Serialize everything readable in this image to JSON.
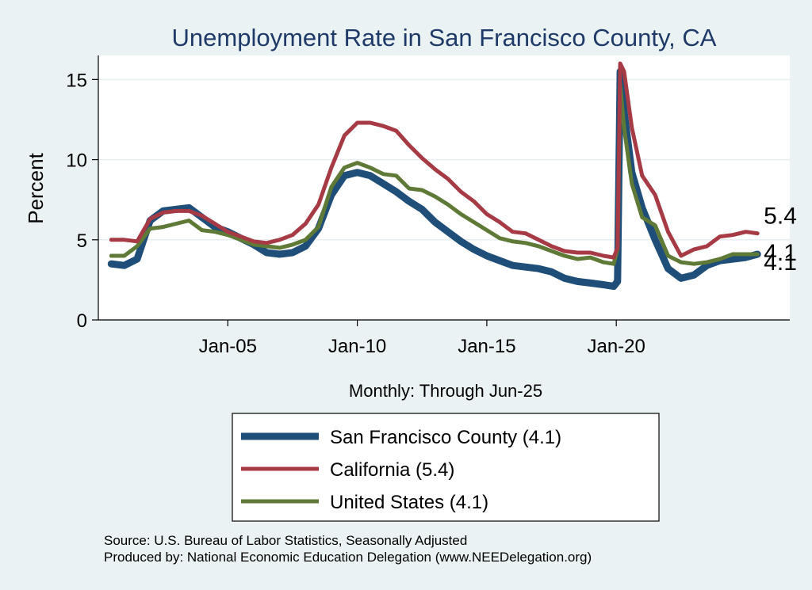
{
  "chart_data": {
    "type": "line",
    "title": "Unemployment Rate in San Francisco  County, CA",
    "xlabel": "Monthly: Through Jun-25",
    "ylabel": "Percent",
    "ylim": [
      0,
      16.5
    ],
    "xlim": [
      2000.0,
      2026.7
    ],
    "yticks": [
      0,
      5,
      10,
      15
    ],
    "xticks": [
      {
        "value": 2005.0,
        "label": "Jan-05"
      },
      {
        "value": 2010.0,
        "label": "Jan-10"
      },
      {
        "value": 2015.0,
        "label": "Jan-15"
      },
      {
        "value": 2020.0,
        "label": "Jan-20"
      }
    ],
    "series": [
      {
        "name": "San Francisco  County",
        "legend": "San Francisco  County (4.1)",
        "end_label": "4.1",
        "color": "#1f4e79",
        "points": [
          [
            2000.5,
            3.5
          ],
          [
            2001.0,
            3.4
          ],
          [
            2001.5,
            3.8
          ],
          [
            2002.0,
            6.2
          ],
          [
            2002.5,
            6.8
          ],
          [
            2003.0,
            6.9
          ],
          [
            2003.5,
            7.0
          ],
          [
            2004.0,
            6.4
          ],
          [
            2004.5,
            5.8
          ],
          [
            2005.0,
            5.5
          ],
          [
            2005.5,
            5.1
          ],
          [
            2006.0,
            4.7
          ],
          [
            2006.5,
            4.2
          ],
          [
            2007.0,
            4.1
          ],
          [
            2007.5,
            4.2
          ],
          [
            2008.0,
            4.6
          ],
          [
            2008.5,
            5.7
          ],
          [
            2009.0,
            7.8
          ],
          [
            2009.5,
            9.0
          ],
          [
            2010.0,
            9.2
          ],
          [
            2010.5,
            9.0
          ],
          [
            2011.0,
            8.5
          ],
          [
            2011.5,
            8.0
          ],
          [
            2012.0,
            7.4
          ],
          [
            2012.5,
            6.9
          ],
          [
            2013.0,
            6.1
          ],
          [
            2013.5,
            5.5
          ],
          [
            2014.0,
            4.9
          ],
          [
            2014.5,
            4.4
          ],
          [
            2015.0,
            4.0
          ],
          [
            2015.5,
            3.7
          ],
          [
            2016.0,
            3.4
          ],
          [
            2016.5,
            3.3
          ],
          [
            2017.0,
            3.2
          ],
          [
            2017.5,
            3.0
          ],
          [
            2018.0,
            2.6
          ],
          [
            2018.5,
            2.4
          ],
          [
            2019.0,
            2.3
          ],
          [
            2019.5,
            2.2
          ],
          [
            2019.9,
            2.1
          ],
          [
            2020.05,
            2.4
          ],
          [
            2020.15,
            15.5
          ],
          [
            2020.3,
            13.0
          ],
          [
            2020.6,
            9.2
          ],
          [
            2021.0,
            7.0
          ],
          [
            2021.5,
            5.0
          ],
          [
            2022.0,
            3.2
          ],
          [
            2022.5,
            2.6
          ],
          [
            2023.0,
            2.8
          ],
          [
            2023.5,
            3.4
          ],
          [
            2024.0,
            3.7
          ],
          [
            2024.5,
            3.8
          ],
          [
            2025.0,
            3.9
          ],
          [
            2025.45,
            4.1
          ]
        ]
      },
      {
        "name": "California",
        "legend": "California (5.4)",
        "end_label": "5.4",
        "color": "#a63b45",
        "points": [
          [
            2000.5,
            5.0
          ],
          [
            2001.0,
            5.0
          ],
          [
            2001.5,
            4.9
          ],
          [
            2002.0,
            6.3
          ],
          [
            2002.5,
            6.7
          ],
          [
            2003.0,
            6.8
          ],
          [
            2003.5,
            6.8
          ],
          [
            2004.0,
            6.5
          ],
          [
            2004.5,
            6.0
          ],
          [
            2005.0,
            5.5
          ],
          [
            2005.5,
            5.2
          ],
          [
            2006.0,
            4.9
          ],
          [
            2006.5,
            4.8
          ],
          [
            2007.0,
            5.0
          ],
          [
            2007.5,
            5.3
          ],
          [
            2008.0,
            6.0
          ],
          [
            2008.5,
            7.2
          ],
          [
            2009.0,
            9.5
          ],
          [
            2009.5,
            11.5
          ],
          [
            2010.0,
            12.3
          ],
          [
            2010.5,
            12.3
          ],
          [
            2011.0,
            12.1
          ],
          [
            2011.5,
            11.8
          ],
          [
            2012.0,
            10.9
          ],
          [
            2012.5,
            10.1
          ],
          [
            2013.0,
            9.4
          ],
          [
            2013.5,
            8.8
          ],
          [
            2014.0,
            8.0
          ],
          [
            2014.5,
            7.4
          ],
          [
            2015.0,
            6.6
          ],
          [
            2015.5,
            6.1
          ],
          [
            2016.0,
            5.5
          ],
          [
            2016.5,
            5.4
          ],
          [
            2017.0,
            5.0
          ],
          [
            2017.5,
            4.6
          ],
          [
            2018.0,
            4.3
          ],
          [
            2018.5,
            4.2
          ],
          [
            2019.0,
            4.2
          ],
          [
            2019.5,
            4.0
          ],
          [
            2019.9,
            3.9
          ],
          [
            2020.05,
            4.5
          ],
          [
            2020.15,
            16.0
          ],
          [
            2020.3,
            15.5
          ],
          [
            2020.6,
            12.0
          ],
          [
            2021.0,
            9.0
          ],
          [
            2021.5,
            7.8
          ],
          [
            2022.0,
            5.5
          ],
          [
            2022.5,
            4.0
          ],
          [
            2023.0,
            4.4
          ],
          [
            2023.5,
            4.6
          ],
          [
            2024.0,
            5.2
          ],
          [
            2024.5,
            5.3
          ],
          [
            2025.0,
            5.5
          ],
          [
            2025.45,
            5.4
          ]
        ]
      },
      {
        "name": "United States",
        "legend": "United States (4.1)",
        "end_label": "4.1",
        "color": "#5e7a36",
        "points": [
          [
            2000.5,
            4.0
          ],
          [
            2001.0,
            4.0
          ],
          [
            2001.5,
            4.6
          ],
          [
            2002.0,
            5.7
          ],
          [
            2002.5,
            5.8
          ],
          [
            2003.0,
            6.0
          ],
          [
            2003.5,
            6.2
          ],
          [
            2004.0,
            5.6
          ],
          [
            2004.5,
            5.5
          ],
          [
            2005.0,
            5.3
          ],
          [
            2005.5,
            5.0
          ],
          [
            2006.0,
            4.7
          ],
          [
            2006.5,
            4.6
          ],
          [
            2007.0,
            4.5
          ],
          [
            2007.5,
            4.7
          ],
          [
            2008.0,
            5.0
          ],
          [
            2008.5,
            5.8
          ],
          [
            2009.0,
            8.3
          ],
          [
            2009.5,
            9.5
          ],
          [
            2010.0,
            9.8
          ],
          [
            2010.5,
            9.5
          ],
          [
            2011.0,
            9.1
          ],
          [
            2011.5,
            9.0
          ],
          [
            2012.0,
            8.2
          ],
          [
            2012.5,
            8.1
          ],
          [
            2013.0,
            7.7
          ],
          [
            2013.5,
            7.2
          ],
          [
            2014.0,
            6.6
          ],
          [
            2014.5,
            6.1
          ],
          [
            2015.0,
            5.6
          ],
          [
            2015.5,
            5.1
          ],
          [
            2016.0,
            4.9
          ],
          [
            2016.5,
            4.8
          ],
          [
            2017.0,
            4.6
          ],
          [
            2017.5,
            4.3
          ],
          [
            2018.0,
            4.0
          ],
          [
            2018.5,
            3.8
          ],
          [
            2019.0,
            3.9
          ],
          [
            2019.5,
            3.6
          ],
          [
            2019.9,
            3.5
          ],
          [
            2020.05,
            4.4
          ],
          [
            2020.15,
            14.7
          ],
          [
            2020.3,
            12.0
          ],
          [
            2020.6,
            8.5
          ],
          [
            2021.0,
            6.4
          ],
          [
            2021.5,
            5.9
          ],
          [
            2022.0,
            4.0
          ],
          [
            2022.5,
            3.6
          ],
          [
            2023.0,
            3.5
          ],
          [
            2023.5,
            3.6
          ],
          [
            2024.0,
            3.8
          ],
          [
            2024.5,
            4.1
          ],
          [
            2025.0,
            4.1
          ],
          [
            2025.45,
            4.1
          ]
        ]
      }
    ]
  },
  "source_line1": "Source: U.S. Bureau of Labor Statistics, Seasonally Adjusted",
  "source_line2": "Produced by: National Economic Education Delegation (www.NEEDelegation.org)"
}
